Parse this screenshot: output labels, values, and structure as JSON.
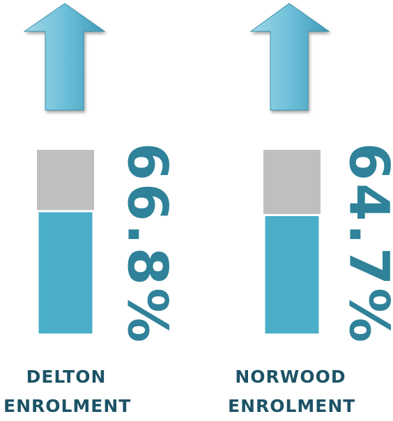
{
  "chart_data": {
    "type": "progress",
    "categories": [
      "DELTON ENROLMENT",
      "NORWOOD ENROLMENT"
    ],
    "values": [
      66.8,
      64.7
    ],
    "value_labels": [
      "66.8%",
      "64.7%"
    ],
    "ylim": [
      0,
      100
    ],
    "color": "#4aaec8",
    "track_color": "#bfbfbf"
  }
}
